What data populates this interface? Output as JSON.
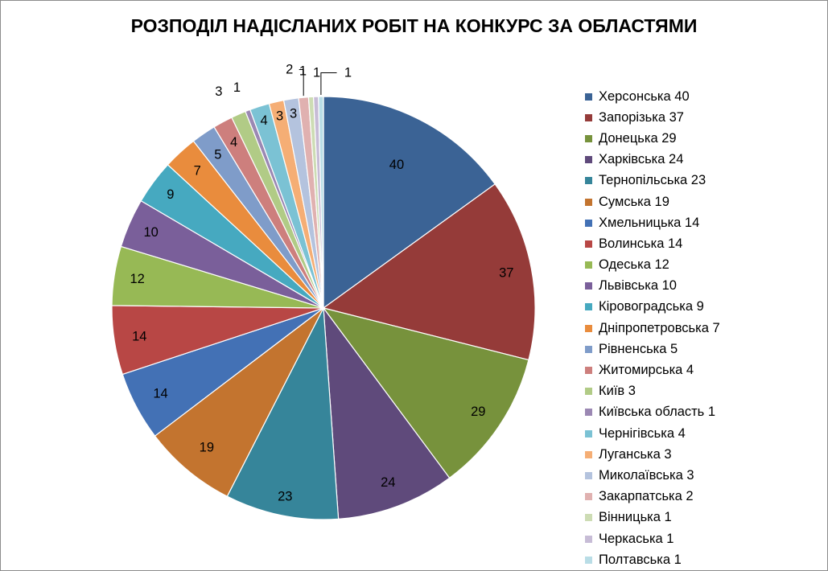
{
  "chart_data": {
    "type": "pie",
    "title": "РОЗПОДІЛ НАДІСЛАНИХ РОБІТ НА КОНКУРС ЗА ОБЛАСТЯМИ",
    "legend_position": "right",
    "slices": [
      {
        "name": "Херсонська",
        "value": 40,
        "color": "#3b6395",
        "legend": "Херсонська 40",
        "label": "40"
      },
      {
        "name": "Запорізька",
        "value": 37,
        "color": "#953b39",
        "legend": "Запорізька 37",
        "label": "37"
      },
      {
        "name": "Донецька",
        "value": 29,
        "color": "#77923c",
        "legend": "Донецька 29",
        "label": "29"
      },
      {
        "name": "Харківська",
        "value": 24,
        "color": "#5f4a7b",
        "legend": "Харківська 24",
        "label": "24"
      },
      {
        "name": "Тернопільська",
        "value": 23,
        "color": "#36859a",
        "legend": "Тернопільська 23",
        "label": "23"
      },
      {
        "name": "Сумська",
        "value": 19,
        "color": "#c3742f",
        "legend": "Сумська 19",
        "label": "19"
      },
      {
        "name": "Хмельницька",
        "value": 14,
        "color": "#4371b5",
        "legend": "Хмельницька 14",
        "label": "14"
      },
      {
        "name": "Волинська",
        "value": 14,
        "color": "#b84745",
        "legend": "Волинська 14",
        "label": "14"
      },
      {
        "name": "Одеська",
        "value": 12,
        "color": "#97b955",
        "legend": "Одеська 12",
        "label": "12"
      },
      {
        "name": "Львівська",
        "value": 10,
        "color": "#7a5f9a",
        "legend": "Львівська 10",
        "label": "10"
      },
      {
        "name": "Кіровоградська",
        "value": 9,
        "color": "#46a9c0",
        "legend": "Кіровоградська 9",
        "label": "9"
      },
      {
        "name": "Дніпропетровська",
        "value": 7,
        "color": "#e98c3d",
        "legend": "Дніпропетровська 7",
        "label": "7"
      },
      {
        "name": "Рівненська",
        "value": 5,
        "color": "#7f9cc9",
        "legend": "Рівненська 5",
        "label": "5"
      },
      {
        "name": "Житомирська",
        "value": 4,
        "color": "#cd7f7d",
        "legend": "Житомирська 4",
        "label": "4"
      },
      {
        "name": "Київ",
        "value": 3,
        "color": "#b1cb86",
        "legend": "Київ 3",
        "label": "3"
      },
      {
        "name": "Київська область",
        "value": 1,
        "color": "#9b88b3",
        "legend": "Київська область 1",
        "label": "1"
      },
      {
        "name": "Чернігівська",
        "value": 4,
        "color": "#7bc2d4",
        "legend": "Чернігівська 4",
        "label": "4"
      },
      {
        "name": "Луганська",
        "value": 3,
        "color": "#f5ae75",
        "legend": "Луганська 3",
        "label": "3"
      },
      {
        "name": "Миколаївська",
        "value": 3,
        "color": "#b4c3de",
        "legend": "Миколаївська 3",
        "label": "3"
      },
      {
        "name": "Закарпатська",
        "value": 2,
        "color": "#e0b1b0",
        "legend": "Закарпатська 2",
        "label": "2"
      },
      {
        "name": "Вінницька",
        "value": 1,
        "color": "#cddcb4",
        "legend": "Вінницька 1",
        "label": "1"
      },
      {
        "name": "Черкаська",
        "value": 1,
        "color": "#c7bcd6",
        "legend": "Черкаська 1",
        "label": "1"
      },
      {
        "name": "Полтавська",
        "value": 1,
        "color": "#b9dde6",
        "legend": "Полтавська 1",
        "label": "1"
      }
    ]
  }
}
